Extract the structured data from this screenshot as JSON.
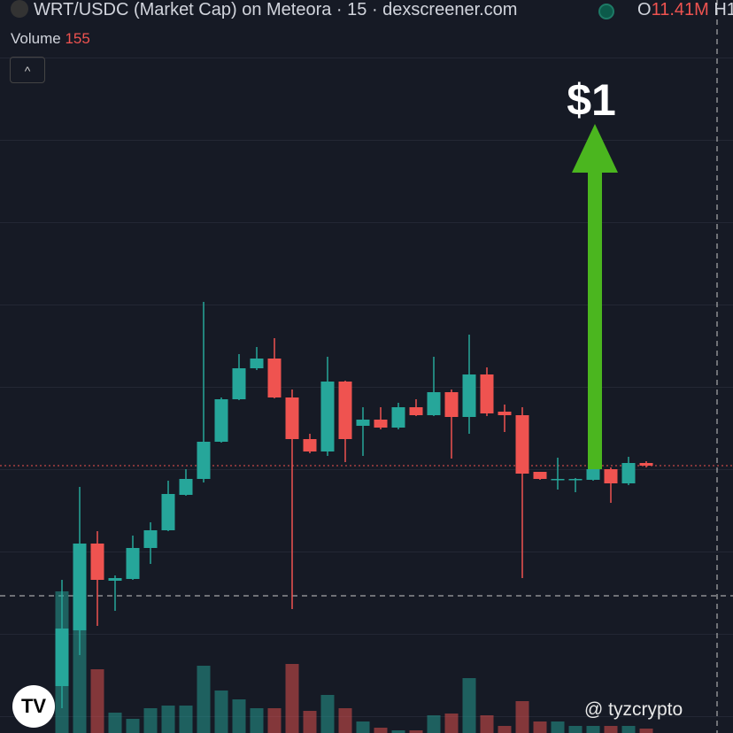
{
  "chart_data": {
    "type": "candlestick",
    "title": "WRT/USDC (Market Cap) on Meteora · 15 · dexscreener.com",
    "ohlc_labels": {
      "open_key": "O",
      "open_value": "11.41M",
      "high_key": "H1."
    },
    "volume_label": "Volume",
    "volume_value": "155",
    "annotation": "$1",
    "watermark": "@ tyzcrypto",
    "up_color": "#26a69a",
    "down_color": "#ef5350",
    "open": [
      53,
      116,
      214,
      172,
      174,
      209,
      229,
      269,
      287,
      329,
      377,
      412,
      423,
      379,
      332,
      318,
      397,
      347,
      354,
      345,
      368,
      359,
      385,
      357,
      405,
      363,
      359,
      295,
      287,
      286,
      286,
      298,
      282,
      305
    ],
    "high": [
      173,
      278,
      228,
      178,
      223,
      238,
      285,
      298,
      487,
      379,
      428,
      436,
      446,
      388,
      338,
      425,
      398,
      368,
      368,
      373,
      377,
      425,
      388,
      450,
      413,
      371,
      368,
      295,
      311,
      288,
      298,
      300,
      312,
      307
    ],
    "low": [
      28,
      88,
      121,
      138,
      173,
      191,
      228,
      268,
      283,
      328,
      376,
      410,
      378,
      140,
      316,
      313,
      306,
      313,
      343,
      343,
      358,
      358,
      310,
      338,
      358,
      340,
      175,
      286,
      275,
      272,
      285,
      260,
      280,
      300
    ],
    "close": [
      118,
      214,
      173,
      175,
      209,
      229,
      270,
      287,
      329,
      377,
      412,
      423,
      379,
      332,
      318,
      397,
      332,
      354,
      345,
      368,
      359,
      385,
      357,
      405,
      361,
      359,
      293,
      287,
      287,
      287,
      298,
      282,
      305,
      302
    ],
    "volume": [
      160,
      118,
      72,
      23,
      16,
      28,
      31,
      31,
      76,
      48,
      38,
      28,
      28,
      78,
      25,
      43,
      28,
      13,
      6,
      3,
      3,
      20,
      22,
      62,
      20,
      8,
      36,
      13,
      13,
      8,
      8,
      8,
      8,
      5
    ],
    "ylim": [
      0,
      828
    ],
    "y2lim": [
      0,
      828
    ],
    "price_line": 302
  }
}
